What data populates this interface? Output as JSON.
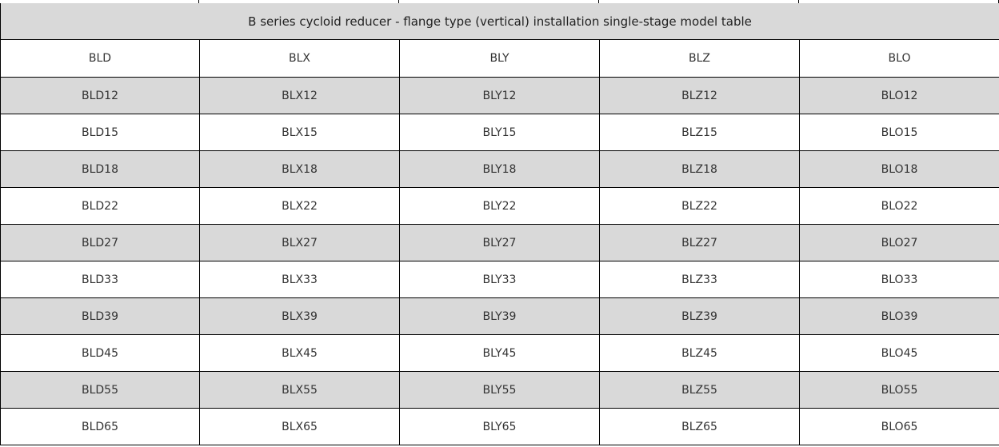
{
  "table": {
    "title": "B series cycloid reducer - flange type (vertical) installation single-stage model table",
    "header": [
      "BLD",
      "BLX",
      "BLY",
      "BLZ",
      "BLO"
    ],
    "rows": [
      [
        "BLD12",
        "BLX12",
        "BLY12",
        "BLZ12",
        "BLO12"
      ],
      [
        "BLD15",
        "BLX15",
        "BLY15",
        "BLZ15",
        "BLO15"
      ],
      [
        "BLD18",
        "BLX18",
        "BLY18",
        "BLZ18",
        "BLO18"
      ],
      [
        "BLD22",
        "BLX22",
        "BLY22",
        "BLZ22",
        "BLO22"
      ],
      [
        "BLD27",
        "BLX27",
        "BLY27",
        "BLZ27",
        "BLO27"
      ],
      [
        "BLD33",
        "BLX33",
        "BLY33",
        "BLZ33",
        "BLO33"
      ],
      [
        "BLD39",
        "BLX39",
        "BLY39",
        "BLZ39",
        "BLO39"
      ],
      [
        "BLD45",
        "BLX45",
        "BLY45",
        "BLZ45",
        "BLO45"
      ],
      [
        "BLD55",
        "BLX55",
        "BLY55",
        "BLZ55",
        "BLO55"
      ],
      [
        "BLD65",
        "BLX65",
        "BLY65",
        "BLZ65",
        "BLO65"
      ]
    ]
  }
}
